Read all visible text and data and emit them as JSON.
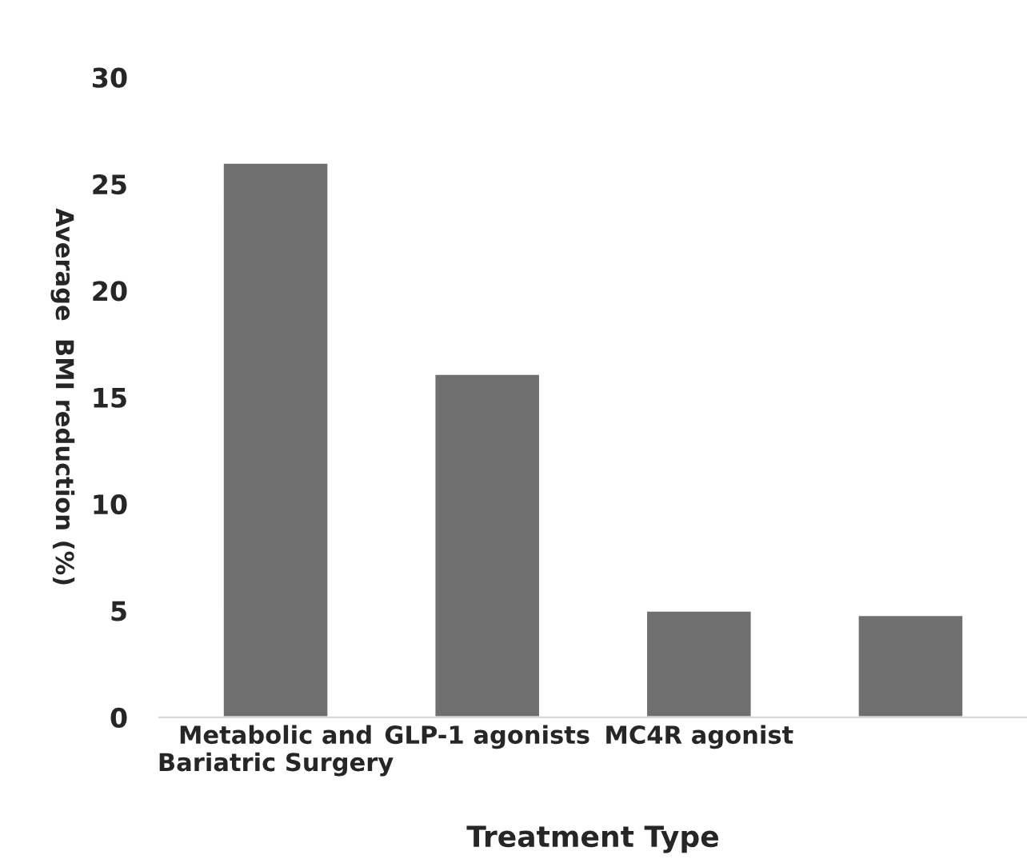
{
  "chart_data": {
    "type": "bar",
    "xlabel": "Treatment Type",
    "ylabel": "Average  BMI reduction (%)",
    "categories": [
      "Metabolic and\nBariatric Surgery",
      "GLP-1 agonists",
      "MC4R agonist",
      null
    ],
    "values": [
      26,
      16.1,
      5,
      4.8
    ],
    "color": "#6f6f6f",
    "ylim": [
      0,
      30
    ],
    "yticks": [
      0,
      5,
      10,
      15,
      20,
      25,
      30
    ],
    "grid": false
  }
}
